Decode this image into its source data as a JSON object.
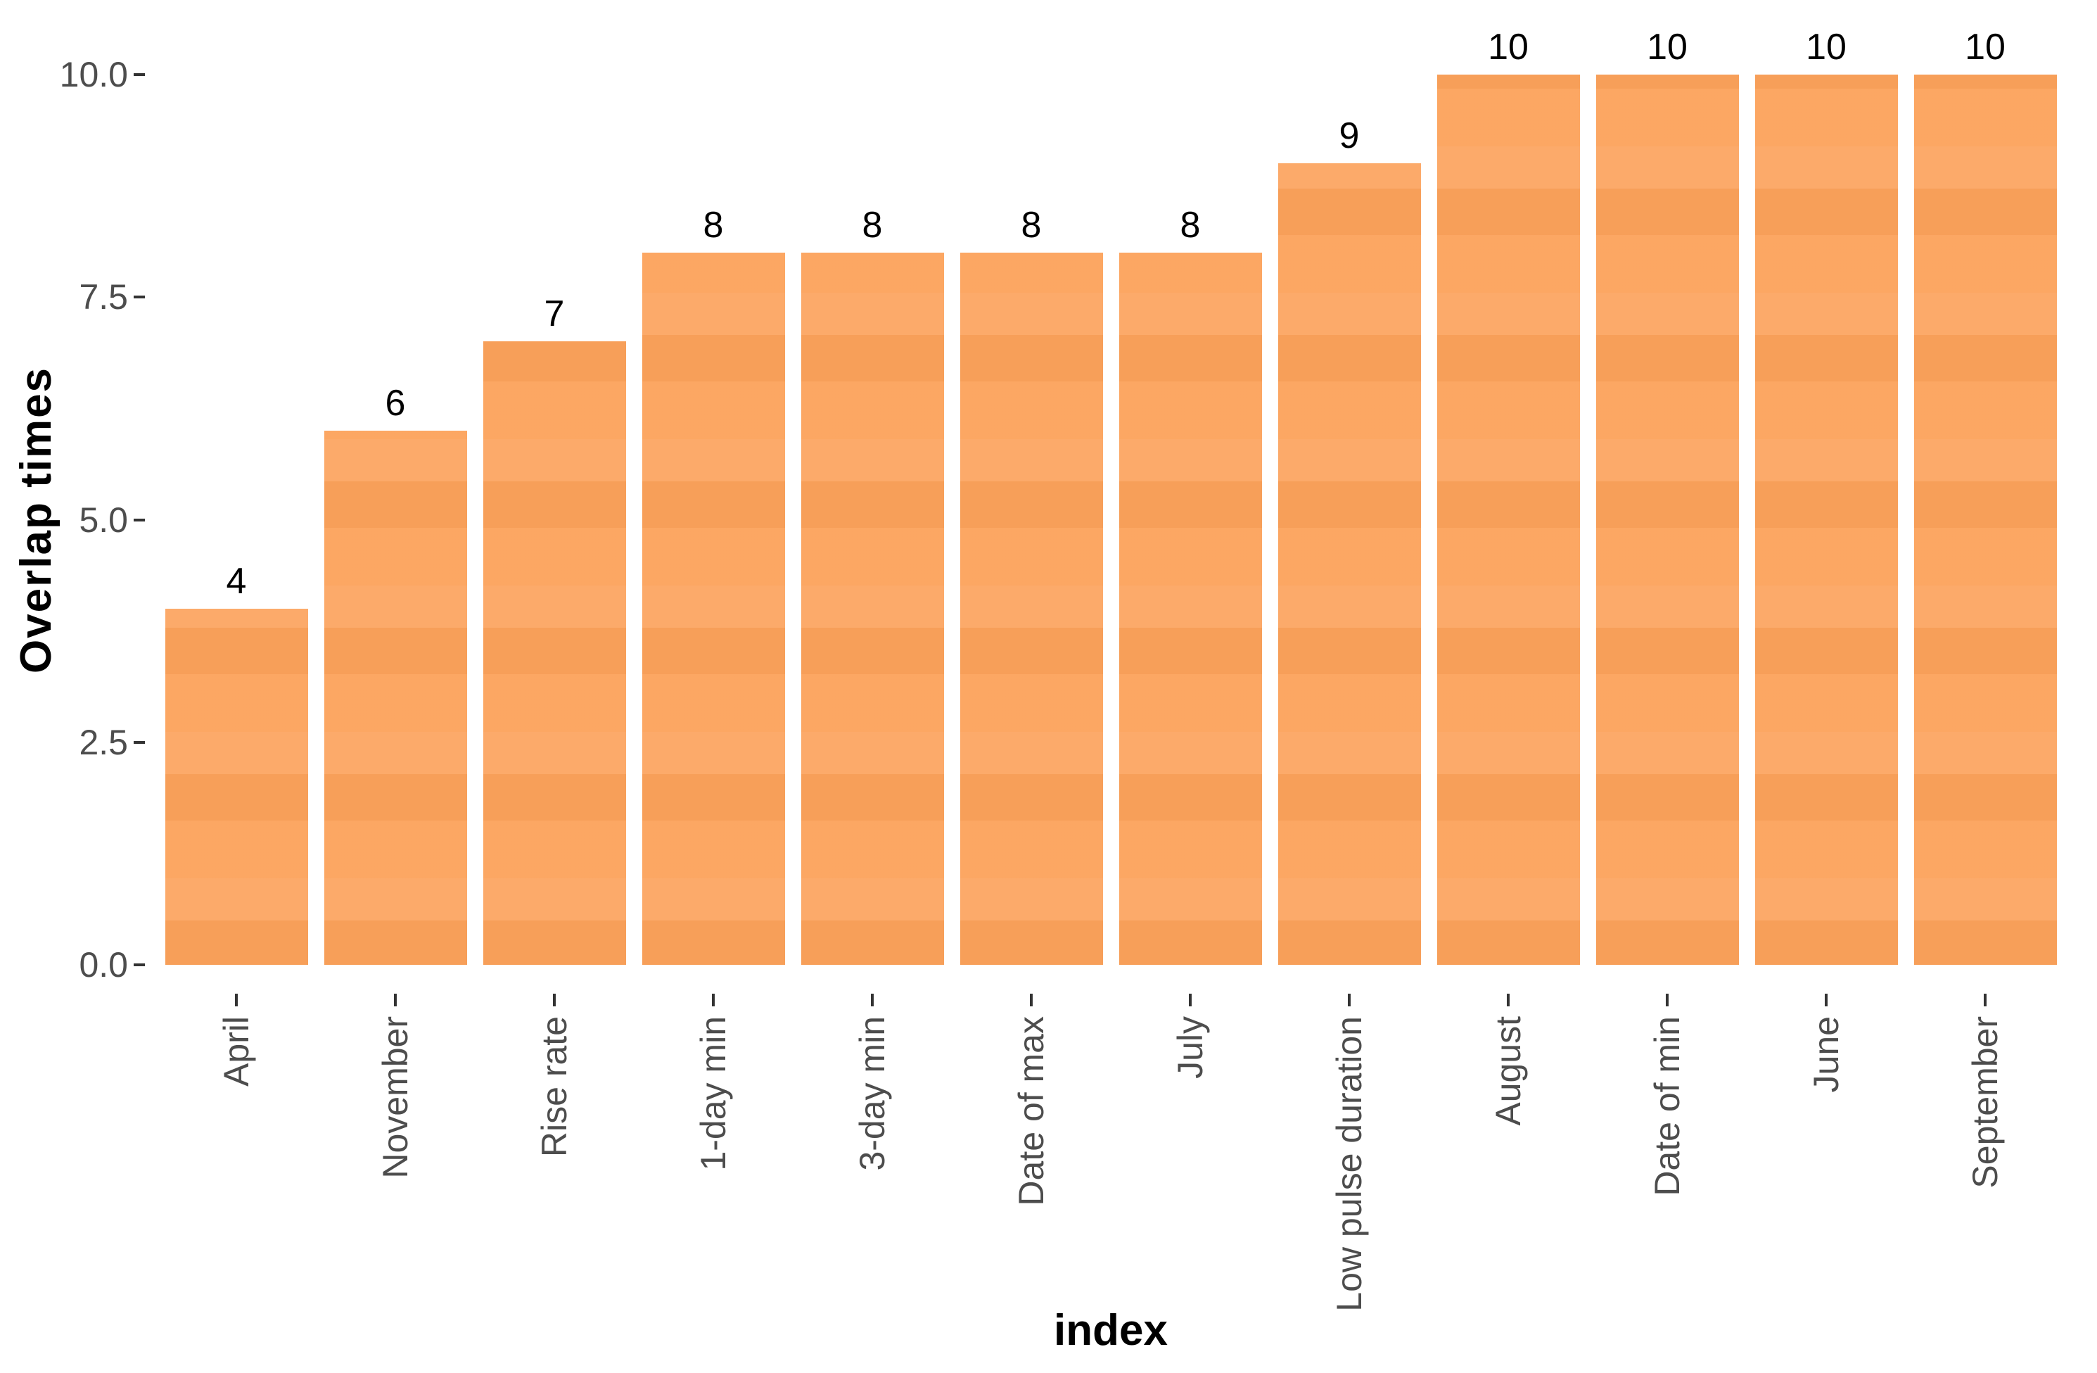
{
  "chart_data": {
    "type": "bar",
    "categories": [
      "April",
      "November",
      "Rise rate",
      "1-day min",
      "3-day min",
      "Date of max",
      "July",
      "Low pulse duration",
      "August",
      "Date of min",
      "June",
      "September"
    ],
    "values": [
      4,
      6,
      7,
      8,
      8,
      8,
      8,
      9,
      10,
      10,
      10,
      10
    ],
    "bar_labels": [
      "4",
      "6",
      "7",
      "8",
      "8",
      "8",
      "8",
      "9",
      "10",
      "10",
      "10",
      "10"
    ],
    "xlabel": "index",
    "ylabel": "Overlap times",
    "y_ticks": [
      0.0,
      2.5,
      5.0,
      7.5,
      10.0
    ],
    "y_tick_labels": [
      "0.0",
      "2.5",
      "5.0",
      "7.5",
      "10.0"
    ],
    "ylim": [
      0,
      10
    ],
    "grid": "off",
    "legend": "none",
    "bar_color": "#fca25b",
    "axis_text_color": "#4d4d4d",
    "tick_color": "#333333",
    "label_color": "#000000",
    "background_color": "#ffffff"
  }
}
